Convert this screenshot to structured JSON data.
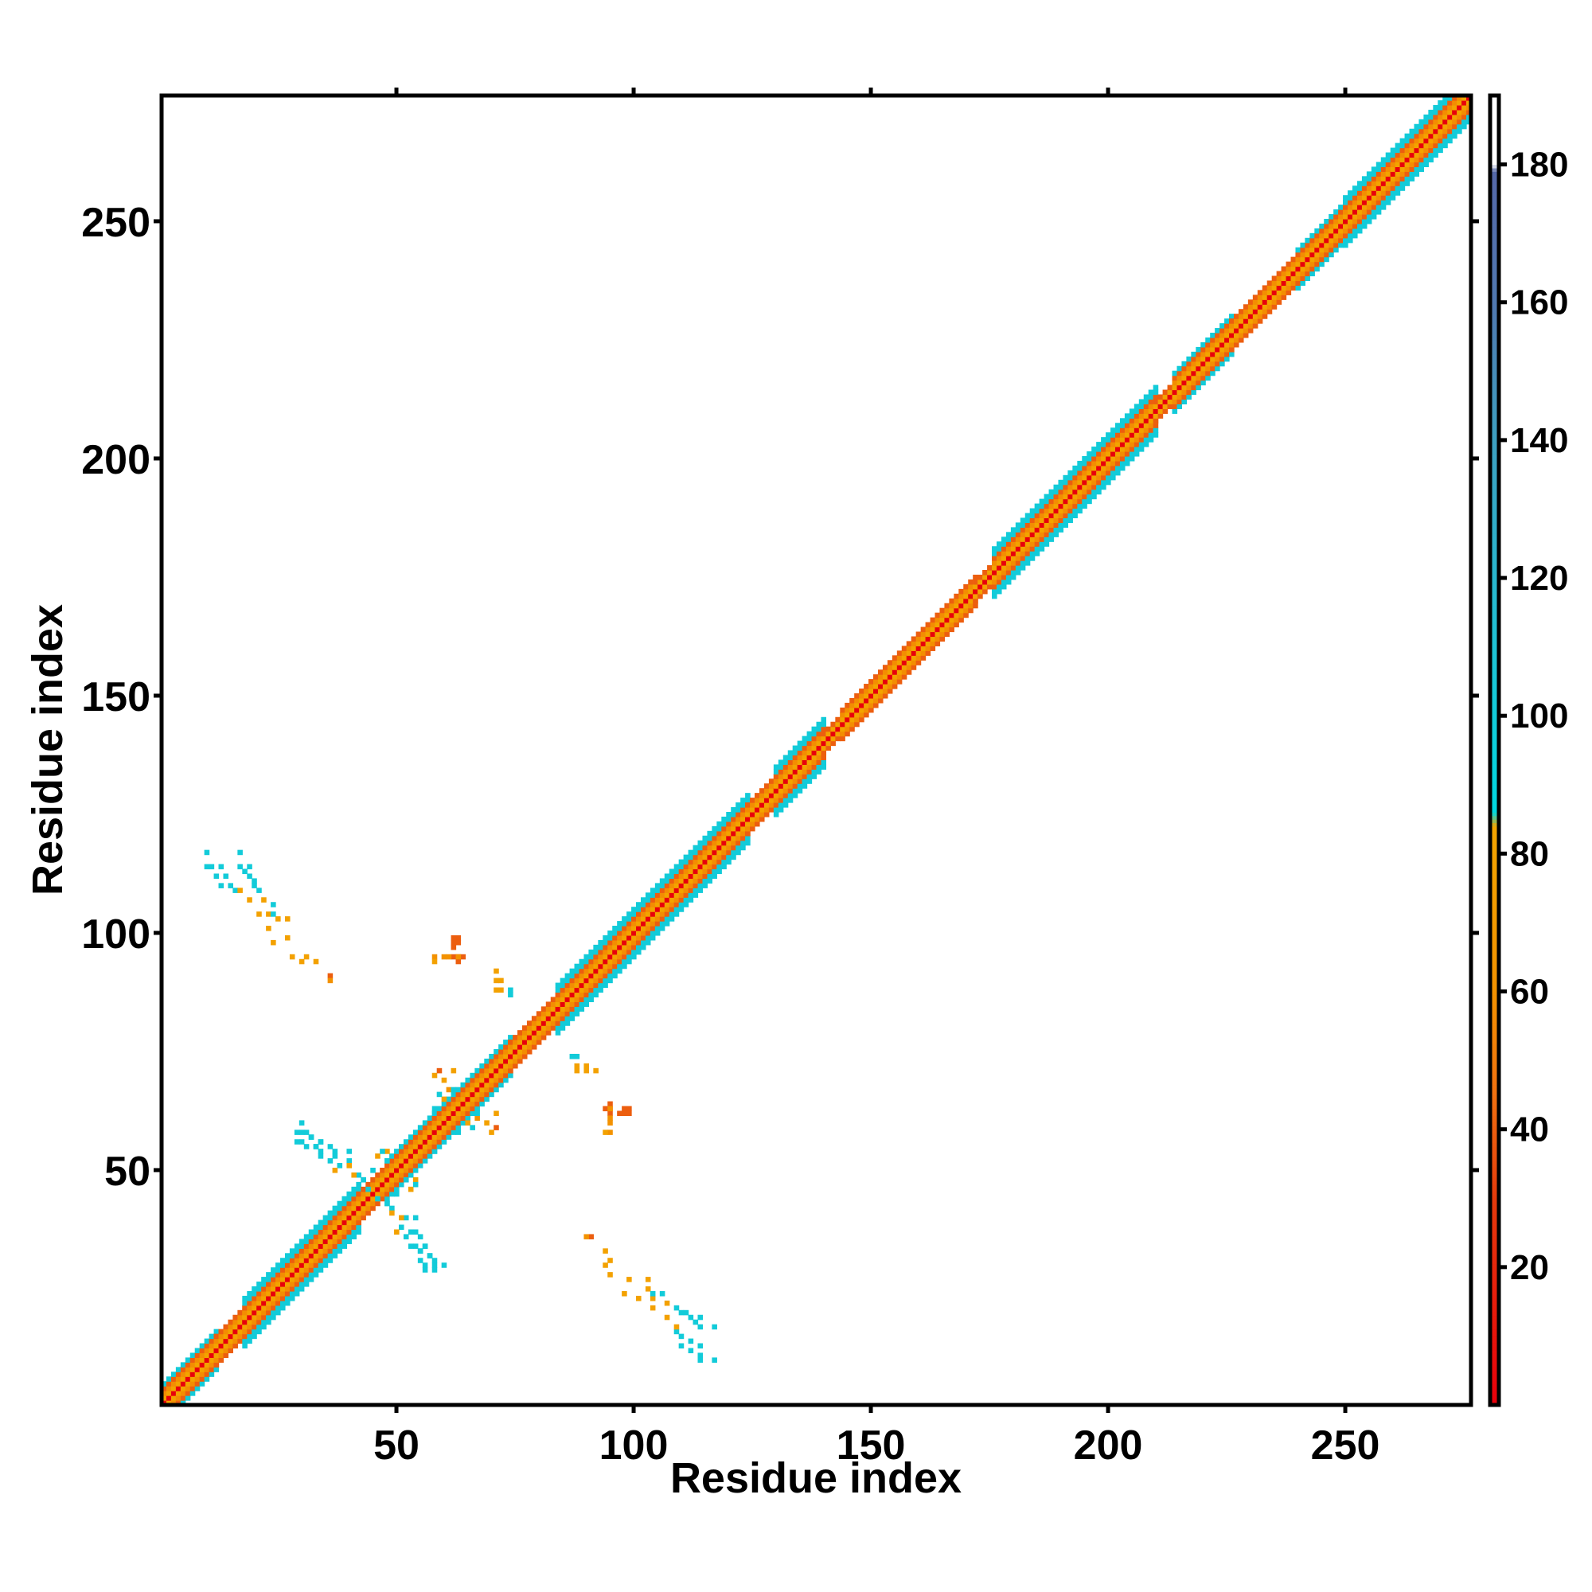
{
  "chart_data": {
    "type": "heatmap",
    "title": "",
    "xlabel": "Residue index",
    "ylabel": "Residue index",
    "xlim": [
      1,
      276
    ],
    "ylim": [
      1,
      276
    ],
    "xticks": [
      50,
      100,
      150,
      200,
      250
    ],
    "yticks": [
      50,
      100,
      150,
      200,
      250
    ],
    "colorbar": {
      "range": [
        0,
        190
      ],
      "ticks": [
        20,
        40,
        60,
        80,
        100,
        120,
        140,
        160,
        180
      ],
      "stops": [
        {
          "value": 0,
          "color": "#e8000b"
        },
        {
          "value": 30,
          "color": "#e43a0c"
        },
        {
          "value": 45,
          "color": "#f07010"
        },
        {
          "value": 60,
          "color": "#f39200"
        },
        {
          "value": 84,
          "color": "#f3a400"
        },
        {
          "value": 86,
          "color": "#00d8e0"
        },
        {
          "value": 110,
          "color": "#1fc2d4"
        },
        {
          "value": 140,
          "color": "#3d9fc0"
        },
        {
          "value": 160,
          "color": "#5078b0"
        },
        {
          "value": 179,
          "color": "#5468a8"
        },
        {
          "value": 180,
          "color": "#ffffff"
        },
        {
          "value": 190,
          "color": "#ffffff"
        }
      ]
    },
    "diagonal_band": {
      "description_values": "value by offset |i-j| along the main diagonal",
      "offsets": [
        {
          "offset": 0,
          "value": 0
        },
        {
          "offset": 1,
          "value": 82
        },
        {
          "offset": 2,
          "value": 58
        },
        {
          "offset": 3,
          "value": 40
        },
        {
          "offset": 4,
          "value": 100
        },
        {
          "offset": 5,
          "value": 100
        }
      ],
      "segments": [
        {
          "start": 1,
          "end": 12,
          "width": 4
        },
        {
          "start": 12,
          "end": 18,
          "width": 3
        },
        {
          "start": 18,
          "end": 42,
          "width": 5
        },
        {
          "start": 42,
          "end": 48,
          "width": 3
        },
        {
          "start": 48,
          "end": 58,
          "width": 4
        },
        {
          "start": 58,
          "end": 74,
          "width": 4
        },
        {
          "start": 74,
          "end": 84,
          "width": 3
        },
        {
          "start": 84,
          "end": 124,
          "width": 5
        },
        {
          "start": 124,
          "end": 130,
          "width": 3
        },
        {
          "start": 130,
          "end": 140,
          "width": 5
        },
        {
          "start": 140,
          "end": 144,
          "width": 2
        },
        {
          "start": 144,
          "end": 172,
          "width": 3
        },
        {
          "start": 172,
          "end": 176,
          "width": 2
        },
        {
          "start": 176,
          "end": 210,
          "width": 5
        },
        {
          "start": 210,
          "end": 214,
          "width": 2
        },
        {
          "start": 214,
          "end": 226,
          "width": 4
        },
        {
          "start": 226,
          "end": 240,
          "width": 3
        },
        {
          "start": 240,
          "end": 250,
          "width": 4
        },
        {
          "start": 250,
          "end": 276,
          "width": 5
        }
      ]
    },
    "off_diagonal_cells": [
      {
        "x": 10,
        "y": 117,
        "v": 100
      },
      {
        "x": 10,
        "y": 114,
        "v": 100
      },
      {
        "x": 11,
        "y": 114,
        "v": 100
      },
      {
        "x": 12,
        "y": 112,
        "v": 100
      },
      {
        "x": 13,
        "y": 114,
        "v": 100
      },
      {
        "x": 14,
        "y": 112,
        "v": 100
      },
      {
        "x": 13,
        "y": 110,
        "v": 100
      },
      {
        "x": 15,
        "y": 110,
        "v": 100
      },
      {
        "x": 16,
        "y": 109,
        "v": 100
      },
      {
        "x": 17,
        "y": 109,
        "v": 80
      },
      {
        "x": 19,
        "y": 107,
        "v": 80
      },
      {
        "x": 21,
        "y": 104,
        "v": 80
      },
      {
        "x": 23,
        "y": 104,
        "v": 80
      },
      {
        "x": 23,
        "y": 101,
        "v": 80
      },
      {
        "x": 24,
        "y": 98,
        "v": 80
      },
      {
        "x": 28,
        "y": 95,
        "v": 80
      },
      {
        "x": 31,
        "y": 95,
        "v": 80
      },
      {
        "x": 36,
        "y": 91,
        "v": 40
      },
      {
        "x": 58,
        "y": 95,
        "v": 60
      },
      {
        "x": 60,
        "y": 95,
        "v": 60
      },
      {
        "x": 62,
        "y": 95,
        "v": 40
      },
      {
        "x": 63,
        "y": 95,
        "v": 40
      },
      {
        "x": 64,
        "y": 95,
        "v": 40
      },
      {
        "x": 63,
        "y": 94,
        "v": 40
      },
      {
        "x": 63,
        "y": 99,
        "v": 40
      },
      {
        "x": 63,
        "y": 98,
        "v": 40
      },
      {
        "x": 72,
        "y": 90,
        "v": 80
      },
      {
        "x": 72,
        "y": 88,
        "v": 80
      },
      {
        "x": 74,
        "y": 87,
        "v": 100
      },
      {
        "x": 88,
        "y": 74,
        "v": 100
      },
      {
        "x": 88,
        "y": 71,
        "v": 80
      },
      {
        "x": 90,
        "y": 71,
        "v": 80
      },
      {
        "x": 92,
        "y": 71,
        "v": 80
      },
      {
        "x": 95,
        "y": 63,
        "v": 60
      },
      {
        "x": 95,
        "y": 61,
        "v": 60
      },
      {
        "x": 97,
        "y": 62,
        "v": 40
      },
      {
        "x": 98,
        "y": 62,
        "v": 40
      },
      {
        "x": 99,
        "y": 62,
        "v": 40
      },
      {
        "x": 94,
        "y": 58,
        "v": 80
      },
      {
        "x": 29,
        "y": 58,
        "v": 100
      },
      {
        "x": 30,
        "y": 56,
        "v": 100
      },
      {
        "x": 31,
        "y": 58,
        "v": 100
      },
      {
        "x": 32,
        "y": 57,
        "v": 100
      },
      {
        "x": 33,
        "y": 55,
        "v": 100
      },
      {
        "x": 34,
        "y": 56,
        "v": 100
      },
      {
        "x": 34,
        "y": 54,
        "v": 100
      },
      {
        "x": 36,
        "y": 55,
        "v": 100
      },
      {
        "x": 37,
        "y": 53,
        "v": 100
      },
      {
        "x": 38,
        "y": 51,
        "v": 100
      },
      {
        "x": 40,
        "y": 54,
        "v": 100
      },
      {
        "x": 40,
        "y": 52,
        "v": 100
      },
      {
        "x": 42,
        "y": 49,
        "v": 100
      },
      {
        "x": 43,
        "y": 48,
        "v": 100
      },
      {
        "x": 48,
        "y": 43,
        "v": 100
      },
      {
        "x": 49,
        "y": 41,
        "v": 80
      },
      {
        "x": 51,
        "y": 40,
        "v": 80
      },
      {
        "x": 50,
        "y": 37,
        "v": 80
      },
      {
        "x": 52,
        "y": 36,
        "v": 100
      },
      {
        "x": 54,
        "y": 37,
        "v": 100
      },
      {
        "x": 53,
        "y": 34,
        "v": 100
      },
      {
        "x": 55,
        "y": 33,
        "v": 100
      },
      {
        "x": 56,
        "y": 34,
        "v": 100
      },
      {
        "x": 57,
        "y": 32,
        "v": 100
      },
      {
        "x": 55,
        "y": 31,
        "v": 100
      },
      {
        "x": 58,
        "y": 30,
        "v": 100
      },
      {
        "x": 60,
        "y": 30,
        "v": 100
      },
      {
        "x": 56,
        "y": 29,
        "v": 100
      },
      {
        "x": 90,
        "y": 36,
        "v": 60
      },
      {
        "x": 94,
        "y": 33,
        "v": 80
      },
      {
        "x": 94,
        "y": 30,
        "v": 80
      },
      {
        "x": 99,
        "y": 27,
        "v": 80
      },
      {
        "x": 103,
        "y": 27,
        "v": 80
      },
      {
        "x": 103,
        "y": 25,
        "v": 80
      },
      {
        "x": 104,
        "y": 24,
        "v": 100
      },
      {
        "x": 106,
        "y": 24,
        "v": 100
      },
      {
        "x": 107,
        "y": 22,
        "v": 80
      },
      {
        "x": 109,
        "y": 21,
        "v": 100
      },
      {
        "x": 110,
        "y": 20,
        "v": 100
      },
      {
        "x": 111,
        "y": 20,
        "v": 100
      },
      {
        "x": 112,
        "y": 19,
        "v": 100
      },
      {
        "x": 114,
        "y": 19,
        "v": 100
      },
      {
        "x": 113,
        "y": 18,
        "v": 100
      },
      {
        "x": 114,
        "y": 17,
        "v": 100
      },
      {
        "x": 117,
        "y": 17,
        "v": 100
      },
      {
        "x": 59,
        "y": 71,
        "v": 40
      },
      {
        "x": 62,
        "y": 71,
        "v": 80
      },
      {
        "x": 61,
        "y": 67,
        "v": 60
      },
      {
        "x": 60,
        "y": 65,
        "v": 80
      },
      {
        "x": 67,
        "y": 62,
        "v": 100
      },
      {
        "x": 69,
        "y": 60,
        "v": 80
      },
      {
        "x": 70,
        "y": 58,
        "v": 80
      },
      {
        "x": 66,
        "y": 59,
        "v": 100
      },
      {
        "x": 58,
        "y": 63,
        "v": 100
      },
      {
        "x": 46,
        "y": 53,
        "v": 80
      },
      {
        "x": 48,
        "y": 54,
        "v": 80
      },
      {
        "x": 52,
        "y": 48,
        "v": 100
      },
      {
        "x": 54,
        "y": 47,
        "v": 100
      },
      {
        "x": 45,
        "y": 50,
        "v": 100
      },
      {
        "x": 44,
        "y": 46,
        "v": 100
      }
    ]
  }
}
